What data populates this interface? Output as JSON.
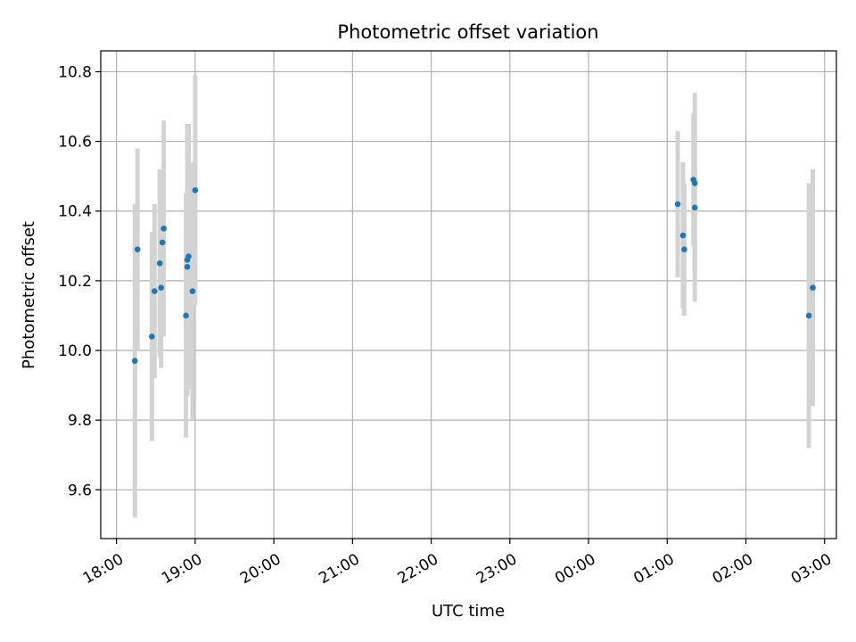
{
  "chart_data": {
    "type": "scatter",
    "title": "Photometric offset variation",
    "xlabel": "UTC time",
    "ylabel": "Photometric offset",
    "xlim": [
      "18:00",
      "03:00"
    ],
    "xlim_hours": [
      17.8,
      27.15
    ],
    "ylim": [
      9.46,
      10.86
    ],
    "grid": true,
    "error_bars": true,
    "colors": {
      "points": "#1f77b4",
      "error_bars": "#d3d3d3"
    },
    "x_ticks": [
      "18:00",
      "19:00",
      "20:00",
      "21:00",
      "22:00",
      "23:00",
      "00:00",
      "01:00",
      "02:00",
      "03:00"
    ],
    "y_ticks": [
      "9.6",
      "9.8",
      "10.0",
      "10.2",
      "10.4",
      "10.6",
      "10.8"
    ],
    "points": [
      {
        "t": "18:14",
        "y": 9.97,
        "err": 0.45
      },
      {
        "t": "18:16",
        "y": 10.29,
        "err": 0.29
      },
      {
        "t": "18:27",
        "y": 10.04,
        "err": 0.3
      },
      {
        "t": "18:29",
        "y": 10.17,
        "err": 0.25
      },
      {
        "t": "18:33",
        "y": 10.25,
        "err": 0.27
      },
      {
        "t": "18:34",
        "y": 10.18,
        "err": 0.23
      },
      {
        "t": "18:35",
        "y": 10.31,
        "err": 0.2
      },
      {
        "t": "18:36",
        "y": 10.35,
        "err": 0.31
      },
      {
        "t": "18:53",
        "y": 10.1,
        "err": 0.35
      },
      {
        "t": "18:54",
        "y": 10.24,
        "err": 0.22
      },
      {
        "t": "18:54",
        "y": 10.26,
        "err": 0.39
      },
      {
        "t": "18:55",
        "y": 10.27,
        "err": 0.38
      },
      {
        "t": "18:58",
        "y": 10.17,
        "err": 0.37
      },
      {
        "t": "19:00",
        "y": 10.46,
        "err": 0.33
      },
      {
        "t": "01:08",
        "y": 10.42,
        "err": 0.21
      },
      {
        "t": "01:12",
        "y": 10.33,
        "err": 0.21
      },
      {
        "t": "01:13",
        "y": 10.29,
        "err": 0.19
      },
      {
        "t": "01:20",
        "y": 10.49,
        "err": 0.19
      },
      {
        "t": "01:21",
        "y": 10.48,
        "err": 0.26
      },
      {
        "t": "01:21",
        "y": 10.41,
        "err": 0.27
      },
      {
        "t": "02:48",
        "y": 10.1,
        "err": 0.38
      },
      {
        "t": "02:51",
        "y": 10.18,
        "err": 0.34
      }
    ]
  }
}
